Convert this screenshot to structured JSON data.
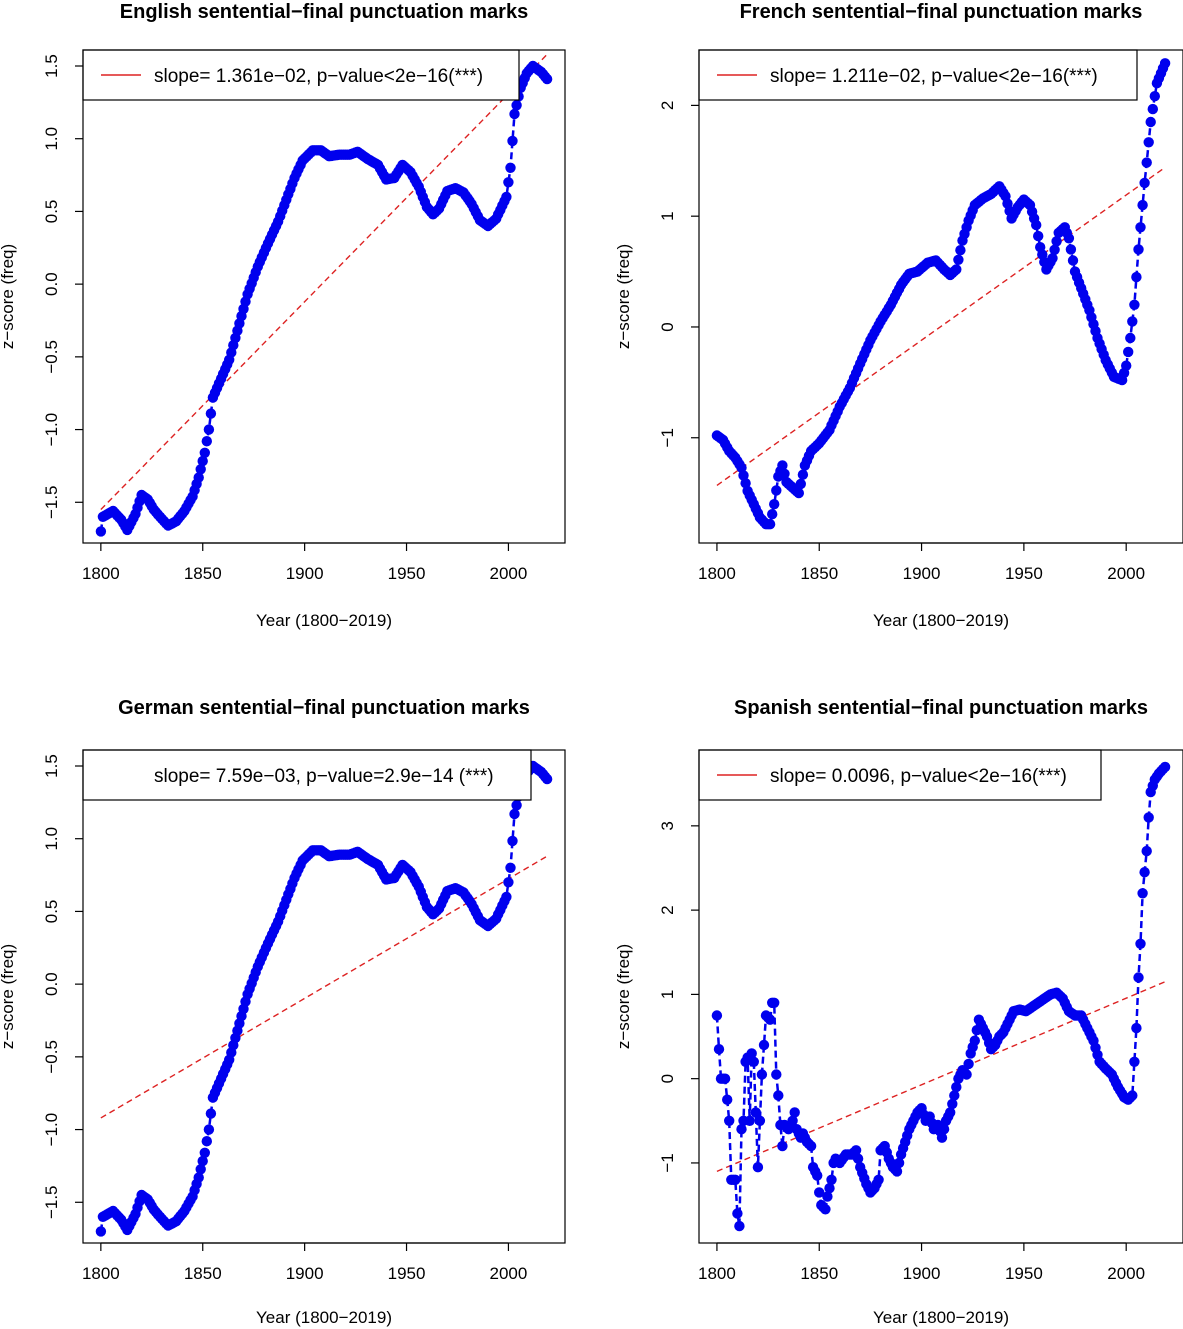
{
  "colors": {
    "series": "#0000ee",
    "trend": "#dd2222",
    "axis": "#000000"
  },
  "chart_data": [
    {
      "type": "scatter",
      "title": "English sentential−final punctuation marks",
      "xlabel": "Year (1800−2019)",
      "ylabel": "z−score (freq)",
      "xlim": [
        1800,
        2019
      ],
      "ylim": [
        -1.78,
        1.61
      ],
      "xticks": [
        1800,
        1850,
        1900,
        1950,
        2000
      ],
      "xtick_labels": [
        "1800",
        "1850",
        "1900",
        "1950",
        "2000"
      ],
      "yticks": [
        -1.5,
        -1.0,
        -0.5,
        0.0,
        0.5,
        1.0,
        1.5
      ],
      "ytick_labels": [
        "−1.5",
        "−1.0",
        "−0.5",
        "0.0",
        "0.5",
        "1.0",
        "1.5"
      ],
      "legend": {
        "text": "slope= 1.361e−02, p−value<2e−16(***)",
        "show_line": true
      },
      "trend": {
        "x1": 1800,
        "y1": -1.55,
        "x2": 2019,
        "y2": 1.58
      },
      "keypoints": [
        [
          1800,
          -1.7
        ],
        [
          1801,
          -1.6
        ],
        [
          1806,
          -1.56
        ],
        [
          1810,
          -1.62
        ],
        [
          1813,
          -1.69
        ],
        [
          1817,
          -1.58
        ],
        [
          1820,
          -1.45
        ],
        [
          1823,
          -1.48
        ],
        [
          1826,
          -1.55
        ],
        [
          1829,
          -1.6
        ],
        [
          1833,
          -1.66
        ],
        [
          1837,
          -1.63
        ],
        [
          1841,
          -1.56
        ],
        [
          1845,
          -1.46
        ],
        [
          1848,
          -1.33
        ],
        [
          1851,
          -1.16
        ],
        [
          1853,
          -1.0
        ],
        [
          1855,
          -0.78
        ],
        [
          1859,
          -0.65
        ],
        [
          1863,
          -0.52
        ],
        [
          1867,
          -0.32
        ],
        [
          1872,
          -0.07
        ],
        [
          1877,
          0.12
        ],
        [
          1882,
          0.28
        ],
        [
          1887,
          0.43
        ],
        [
          1891,
          0.58
        ],
        [
          1895,
          0.73
        ],
        [
          1899,
          0.85
        ],
        [
          1904,
          0.92
        ],
        [
          1908,
          0.92
        ],
        [
          1912,
          0.88
        ],
        [
          1917,
          0.89
        ],
        [
          1922,
          0.89
        ],
        [
          1926,
          0.91
        ],
        [
          1931,
          0.86
        ],
        [
          1936,
          0.82
        ],
        [
          1940,
          0.72
        ],
        [
          1944,
          0.73
        ],
        [
          1948,
          0.82
        ],
        [
          1952,
          0.77
        ],
        [
          1956,
          0.67
        ],
        [
          1960,
          0.53
        ],
        [
          1963,
          0.48
        ],
        [
          1966,
          0.52
        ],
        [
          1970,
          0.64
        ],
        [
          1974,
          0.66
        ],
        [
          1978,
          0.63
        ],
        [
          1982,
          0.55
        ],
        [
          1986,
          0.44
        ],
        [
          1990,
          0.4
        ],
        [
          1994,
          0.45
        ],
        [
          1997,
          0.54
        ],
        [
          1999,
          0.6
        ],
        [
          2001,
          0.8
        ],
        [
          2003,
          1.17
        ],
        [
          2006,
          1.35
        ],
        [
          2009,
          1.45
        ],
        [
          2012,
          1.5
        ],
        [
          2016,
          1.46
        ],
        [
          2019,
          1.41
        ]
      ]
    },
    {
      "type": "scatter",
      "title": "French sentential−final punctuation marks",
      "xlabel": "Year (1800−2019)",
      "ylabel": "z−score (freq)",
      "xlim": [
        1800,
        2019
      ],
      "ylim": [
        -1.95,
        2.5
      ],
      "xticks": [
        1800,
        1850,
        1900,
        1950,
        2000
      ],
      "xtick_labels": [
        "1800",
        "1850",
        "1900",
        "1950",
        "2000"
      ],
      "yticks": [
        -1,
        0,
        1,
        2
      ],
      "ytick_labels": [
        "−1",
        "0",
        "1",
        "2"
      ],
      "legend": {
        "text": "slope= 1.211e−02, p−value<2e−16(***)",
        "show_line": true
      },
      "trend": {
        "x1": 1800,
        "y1": -1.43,
        "x2": 2019,
        "y2": 1.44
      },
      "keypoints": [
        [
          1800,
          -0.98
        ],
        [
          1803,
          -1.02
        ],
        [
          1806,
          -1.12
        ],
        [
          1809,
          -1.18
        ],
        [
          1812,
          -1.27
        ],
        [
          1815,
          -1.48
        ],
        [
          1818,
          -1.6
        ],
        [
          1821,
          -1.72
        ],
        [
          1824,
          -1.78
        ],
        [
          1826,
          -1.78
        ],
        [
          1828,
          -1.6
        ],
        [
          1830,
          -1.35
        ],
        [
          1832,
          -1.25
        ],
        [
          1834,
          -1.4
        ],
        [
          1837,
          -1.45
        ],
        [
          1840,
          -1.5
        ],
        [
          1843,
          -1.25
        ],
        [
          1846,
          -1.12
        ],
        [
          1850,
          -1.05
        ],
        [
          1855,
          -0.93
        ],
        [
          1860,
          -0.72
        ],
        [
          1865,
          -0.55
        ],
        [
          1870,
          -0.33
        ],
        [
          1875,
          -0.12
        ],
        [
          1880,
          0.05
        ],
        [
          1885,
          0.2
        ],
        [
          1890,
          0.38
        ],
        [
          1894,
          0.48
        ],
        [
          1898,
          0.5
        ],
        [
          1903,
          0.58
        ],
        [
          1907,
          0.6
        ],
        [
          1911,
          0.52
        ],
        [
          1914,
          0.47
        ],
        [
          1917,
          0.52
        ],
        [
          1920,
          0.78
        ],
        [
          1923,
          0.96
        ],
        [
          1926,
          1.1
        ],
        [
          1930,
          1.16
        ],
        [
          1934,
          1.2
        ],
        [
          1938,
          1.27
        ],
        [
          1941,
          1.18
        ],
        [
          1944,
          0.98
        ],
        [
          1947,
          1.08
        ],
        [
          1950,
          1.15
        ],
        [
          1953,
          1.1
        ],
        [
          1956,
          0.92
        ],
        [
          1958,
          0.72
        ],
        [
          1961,
          0.52
        ],
        [
          1964,
          0.62
        ],
        [
          1967,
          0.85
        ],
        [
          1970,
          0.9
        ],
        [
          1972,
          0.8
        ],
        [
          1975,
          0.5
        ],
        [
          1978,
          0.35
        ],
        [
          1982,
          0.15
        ],
        [
          1986,
          -0.1
        ],
        [
          1990,
          -0.3
        ],
        [
          1994,
          -0.45
        ],
        [
          1998,
          -0.48
        ],
        [
          2000,
          -0.35
        ],
        [
          2002,
          -0.1
        ],
        [
          2004,
          0.2
        ],
        [
          2006,
          0.7
        ],
        [
          2009,
          1.3
        ],
        [
          2012,
          1.85
        ],
        [
          2015,
          2.2
        ],
        [
          2019,
          2.38
        ]
      ]
    },
    {
      "type": "scatter",
      "title": "German sentential−final punctuation marks",
      "xlabel": "Year (1800−2019)",
      "ylabel": "z−score (freq)",
      "xlim": [
        1800,
        2019
      ],
      "ylim": [
        -1.78,
        1.61
      ],
      "xticks": [
        1800,
        1850,
        1900,
        1950,
        2000
      ],
      "xtick_labels": [
        "1800",
        "1850",
        "1900",
        "1950",
        "2000"
      ],
      "yticks": [
        -1.5,
        -1.0,
        -0.5,
        0.0,
        0.5,
        1.0,
        1.5
      ],
      "ytick_labels": [
        "−1.5",
        "−1.0",
        "−0.5",
        "0.0",
        "0.5",
        "1.0",
        "1.5"
      ],
      "legend": {
        "text": "slope= 7.59e−03, p−value=2.9e−14 (***)",
        "show_line": false
      },
      "trend": {
        "x1": 1800,
        "y1": -0.92,
        "x2": 2019,
        "y2": 0.88
      },
      "keypoints": [
        [
          1800,
          -1.7
        ],
        [
          1801,
          -1.6
        ],
        [
          1806,
          -1.56
        ],
        [
          1810,
          -1.62
        ],
        [
          1813,
          -1.69
        ],
        [
          1817,
          -1.58
        ],
        [
          1820,
          -1.45
        ],
        [
          1823,
          -1.48
        ],
        [
          1826,
          -1.55
        ],
        [
          1829,
          -1.6
        ],
        [
          1833,
          -1.66
        ],
        [
          1837,
          -1.63
        ],
        [
          1841,
          -1.56
        ],
        [
          1845,
          -1.46
        ],
        [
          1848,
          -1.33
        ],
        [
          1851,
          -1.16
        ],
        [
          1853,
          -1.0
        ],
        [
          1855,
          -0.78
        ],
        [
          1859,
          -0.65
        ],
        [
          1863,
          -0.52
        ],
        [
          1867,
          -0.32
        ],
        [
          1872,
          -0.07
        ],
        [
          1877,
          0.12
        ],
        [
          1882,
          0.28
        ],
        [
          1887,
          0.43
        ],
        [
          1891,
          0.58
        ],
        [
          1895,
          0.73
        ],
        [
          1899,
          0.85
        ],
        [
          1904,
          0.92
        ],
        [
          1908,
          0.92
        ],
        [
          1912,
          0.88
        ],
        [
          1917,
          0.89
        ],
        [
          1922,
          0.89
        ],
        [
          1926,
          0.91
        ],
        [
          1931,
          0.86
        ],
        [
          1936,
          0.82
        ],
        [
          1940,
          0.72
        ],
        [
          1944,
          0.73
        ],
        [
          1948,
          0.82
        ],
        [
          1952,
          0.77
        ],
        [
          1956,
          0.67
        ],
        [
          1960,
          0.53
        ],
        [
          1963,
          0.48
        ],
        [
          1966,
          0.52
        ],
        [
          1970,
          0.64
        ],
        [
          1974,
          0.66
        ],
        [
          1978,
          0.63
        ],
        [
          1982,
          0.55
        ],
        [
          1986,
          0.44
        ],
        [
          1990,
          0.4
        ],
        [
          1994,
          0.45
        ],
        [
          1997,
          0.54
        ],
        [
          1999,
          0.6
        ],
        [
          2001,
          0.8
        ],
        [
          2003,
          1.17
        ],
        [
          2006,
          1.35
        ],
        [
          2009,
          1.45
        ],
        [
          2012,
          1.5
        ],
        [
          2016,
          1.46
        ],
        [
          2019,
          1.41
        ]
      ]
    },
    {
      "type": "scatter",
      "title": "Spanish sentential−final punctuation marks",
      "xlabel": "Year (1800−2019)",
      "ylabel": "z−score (freq)",
      "xlim": [
        1800,
        2019
      ],
      "ylim": [
        -1.95,
        3.9
      ],
      "xticks": [
        1800,
        1850,
        1900,
        1950,
        2000
      ],
      "xtick_labels": [
        "1800",
        "1850",
        "1900",
        "1950",
        "2000"
      ],
      "yticks": [
        -1,
        0,
        1,
        2,
        3
      ],
      "ytick_labels": [
        "−1",
        "0",
        "1",
        "2",
        "3"
      ],
      "legend": {
        "text": "slope= 0.0096, p−value<2e−16(***)",
        "show_line": true
      },
      "trend": {
        "x1": 1800,
        "y1": -1.1,
        "x2": 2019,
        "y2": 1.15
      },
      "keypoints": [
        [
          1800,
          0.75
        ],
        [
          1801,
          0.35
        ],
        [
          1802,
          0.0
        ],
        [
          1804,
          0.0
        ],
        [
          1805,
          -0.25
        ],
        [
          1806,
          -0.5
        ],
        [
          1807,
          -1.2
        ],
        [
          1809,
          -1.2
        ],
        [
          1810,
          -1.6
        ],
        [
          1811,
          -1.75
        ],
        [
          1812,
          -0.6
        ],
        [
          1813,
          -0.5
        ],
        [
          1814,
          0.2
        ],
        [
          1815,
          0.25
        ],
        [
          1816,
          -0.5
        ],
        [
          1817,
          0.3
        ],
        [
          1818,
          0.2
        ],
        [
          1819,
          -0.4
        ],
        [
          1820,
          -1.05
        ],
        [
          1821,
          -0.5
        ],
        [
          1822,
          0.05
        ],
        [
          1823,
          0.4
        ],
        [
          1824,
          0.75
        ],
        [
          1826,
          0.7
        ],
        [
          1827,
          0.9
        ],
        [
          1828,
          0.9
        ],
        [
          1829,
          0.05
        ],
        [
          1830,
          -0.2
        ],
        [
          1831,
          -0.55
        ],
        [
          1832,
          -0.8
        ],
        [
          1833,
          -0.55
        ],
        [
          1835,
          -0.6
        ],
        [
          1837,
          -0.5
        ],
        [
          1838,
          -0.4
        ],
        [
          1839,
          -0.6
        ],
        [
          1841,
          -0.7
        ],
        [
          1842,
          -0.65
        ],
        [
          1844,
          -0.75
        ],
        [
          1846,
          -0.8
        ],
        [
          1847,
          -1.05
        ],
        [
          1849,
          -1.15
        ],
        [
          1850,
          -1.35
        ],
        [
          1851,
          -1.5
        ],
        [
          1853,
          -1.55
        ],
        [
          1854,
          -1.4
        ],
        [
          1856,
          -1.2
        ],
        [
          1857,
          -1.0
        ],
        [
          1858,
          -0.95
        ],
        [
          1860,
          -1.0
        ],
        [
          1863,
          -0.9
        ],
        [
          1866,
          -0.9
        ],
        [
          1868,
          -0.85
        ],
        [
          1870,
          -1.05
        ],
        [
          1873,
          -1.25
        ],
        [
          1875,
          -1.35
        ],
        [
          1877,
          -1.3
        ],
        [
          1879,
          -1.2
        ],
        [
          1880,
          -0.85
        ],
        [
          1882,
          -0.8
        ],
        [
          1884,
          -0.95
        ],
        [
          1886,
          -1.05
        ],
        [
          1888,
          -1.1
        ],
        [
          1890,
          -0.9
        ],
        [
          1892,
          -0.75
        ],
        [
          1894,
          -0.6
        ],
        [
          1896,
          -0.5
        ],
        [
          1898,
          -0.4
        ],
        [
          1900,
          -0.35
        ],
        [
          1902,
          -0.5
        ],
        [
          1904,
          -0.45
        ],
        [
          1906,
          -0.6
        ],
        [
          1908,
          -0.55
        ],
        [
          1910,
          -0.7
        ],
        [
          1912,
          -0.5
        ],
        [
          1914,
          -0.4
        ],
        [
          1916,
          -0.2
        ],
        [
          1918,
          0.0
        ],
        [
          1920,
          0.1
        ],
        [
          1922,
          0.05
        ],
        [
          1924,
          0.3
        ],
        [
          1926,
          0.45
        ],
        [
          1928,
          0.7
        ],
        [
          1930,
          0.6
        ],
        [
          1932,
          0.5
        ],
        [
          1934,
          0.35
        ],
        [
          1936,
          0.4
        ],
        [
          1938,
          0.5
        ],
        [
          1940,
          0.55
        ],
        [
          1942,
          0.65
        ],
        [
          1945,
          0.8
        ],
        [
          1948,
          0.82
        ],
        [
          1951,
          0.8
        ],
        [
          1954,
          0.85
        ],
        [
          1957,
          0.9
        ],
        [
          1960,
          0.95
        ],
        [
          1963,
          1.0
        ],
        [
          1966,
          1.02
        ],
        [
          1969,
          0.95
        ],
        [
          1972,
          0.8
        ],
        [
          1975,
          0.75
        ],
        [
          1978,
          0.75
        ],
        [
          1981,
          0.6
        ],
        [
          1984,
          0.45
        ],
        [
          1987,
          0.2
        ],
        [
          1990,
          0.12
        ],
        [
          1993,
          0.05
        ],
        [
          1996,
          -0.1
        ],
        [
          1999,
          -0.22
        ],
        [
          2001,
          -0.25
        ],
        [
          2003,
          -0.2
        ],
        [
          2004,
          0.2
        ],
        [
          2005,
          0.6
        ],
        [
          2006,
          1.2
        ],
        [
          2007,
          1.6
        ],
        [
          2008,
          2.2
        ],
        [
          2010,
          2.7
        ],
        [
          2011,
          3.1
        ],
        [
          2012,
          3.4
        ],
        [
          2014,
          3.55
        ],
        [
          2016,
          3.62
        ],
        [
          2019,
          3.7
        ]
      ]
    }
  ]
}
